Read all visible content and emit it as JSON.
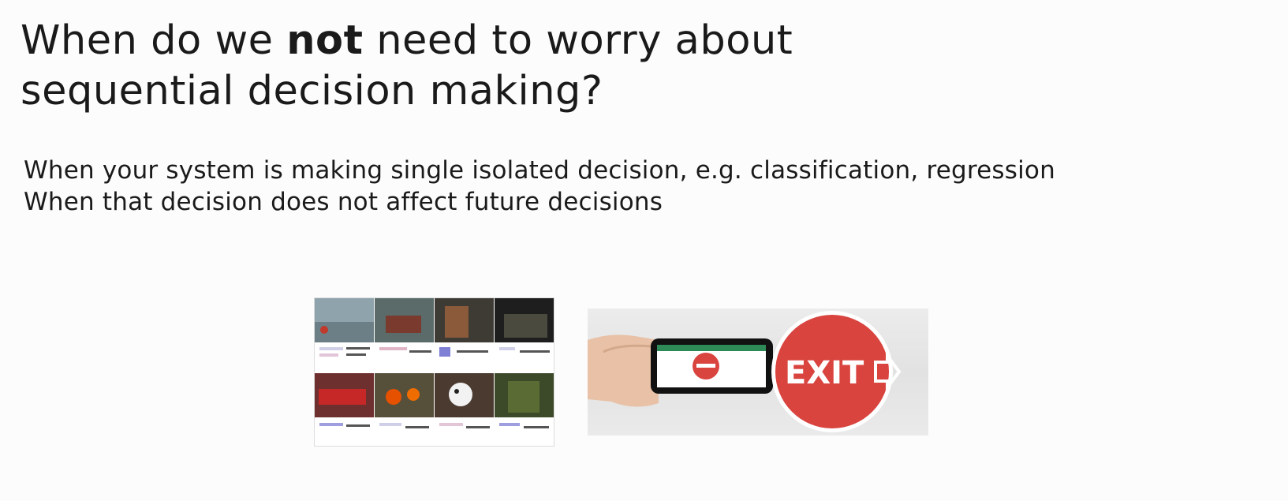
{
  "slide": {
    "title_before": "When do we ",
    "title_bold": "not",
    "title_after_line1": " need to worry about",
    "title_line2": "sequential decision making?",
    "bullets": [
      "When your system is making single isolated decision, e.g. classification, regression",
      "When that decision does not affect future decisions"
    ]
  },
  "images": {
    "classification_grid": {
      "icon": "image-classification-grid"
    },
    "exit_sign": {
      "icon": "phone-exit-sign-photo",
      "sign_text": "EXIT",
      "sign_color": "#d9443f"
    }
  }
}
